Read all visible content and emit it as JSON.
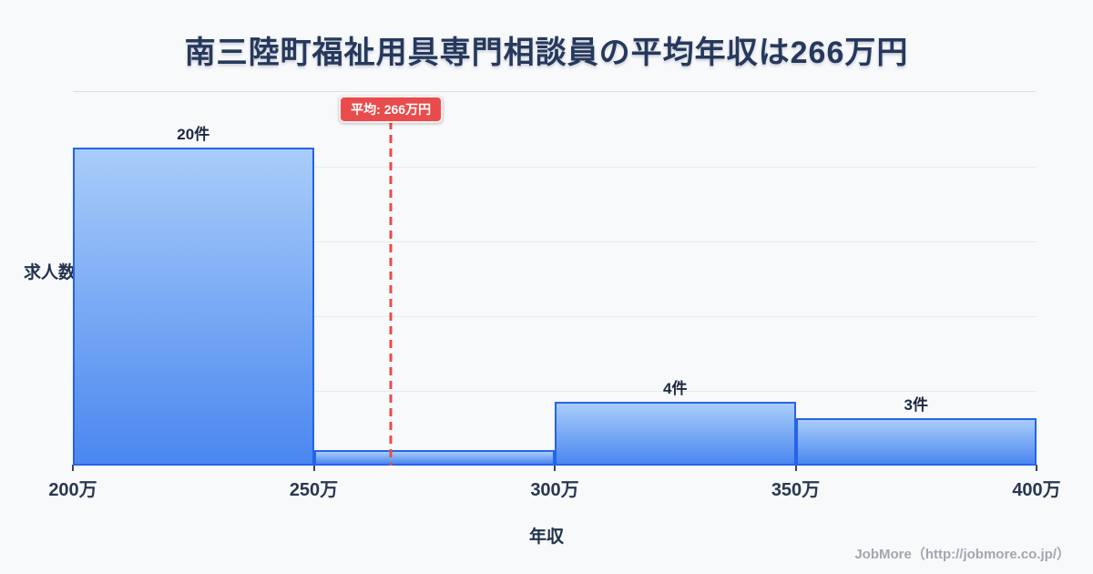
{
  "title": "南三陸町福祉用具専門相談員の平均年収は266万円",
  "chart_data": {
    "type": "bar",
    "title": "南三陸町福祉用具専門相談員の平均年収は266万円",
    "xlabel": "年収",
    "ylabel": "求人数",
    "x_ticks": [
      "200万",
      "250万",
      "300万",
      "350万",
      "400万"
    ],
    "xlim_man_yen": [
      200,
      400
    ],
    "bins": [
      "200万-250万",
      "250万-300万",
      "300万-350万",
      "350万-400万"
    ],
    "values": [
      20,
      1,
      4,
      3
    ],
    "bar_labels": [
      "20件",
      "",
      "4件",
      "3件"
    ],
    "unit": "件",
    "ylim": [
      0,
      23.5
    ],
    "grid": "horizontal",
    "gridline_count": 4,
    "legend": "none",
    "average": {
      "value_man_yen": 266,
      "label": "平均: 266万円"
    }
  },
  "footer": {
    "credit": "JobMore（http://jobmore.co.jp/）"
  },
  "colors": {
    "background": "#f8f9fb",
    "title_text": "#26395c",
    "bar_border": "#2563eb",
    "bar_fill_top": "#a9cdf9",
    "bar_fill_bottom": "#4a87f0",
    "average_red": "#e84c4c",
    "grid": "#e6eaf4",
    "tick_text": "#29384f",
    "footer_text": "#a2a7af"
  }
}
